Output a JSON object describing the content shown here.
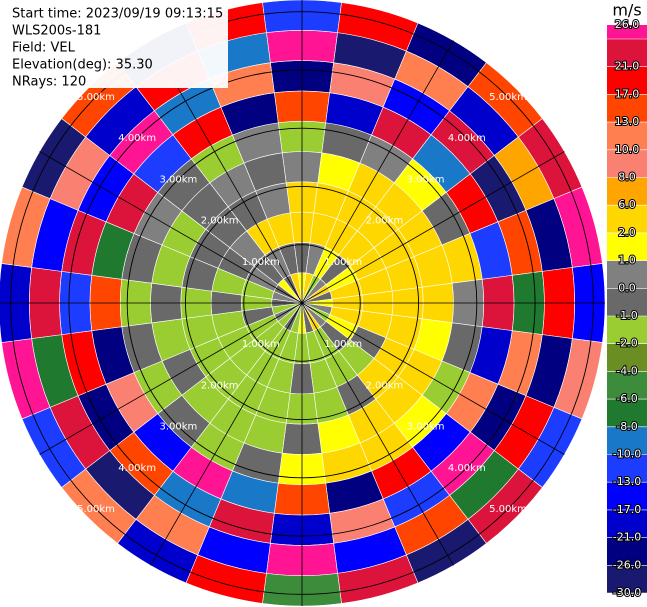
{
  "chart_data": {
    "type": "ppi",
    "header": [
      "Start time: 2023/09/19 09:13:15",
      "WLS200s-181",
      "Field: VEL",
      "Elevation(deg): 35.30",
      "NRays: 120"
    ],
    "rlim": [
      0,
      5.2
    ],
    "rticks": [
      {
        "value": 1,
        "label": "1.00km"
      },
      {
        "value": 2,
        "label": "2.00km"
      },
      {
        "value": 3,
        "label": "3.00km"
      },
      {
        "value": 4,
        "label": "4.00km"
      },
      {
        "value": 5,
        "label": "5.00km"
      }
    ],
    "azimuth_deg": [
      0,
      15,
      30,
      45,
      60,
      75,
      90,
      105,
      120,
      135,
      150,
      165,
      180,
      195,
      210,
      225,
      240,
      255,
      270,
      285,
      300,
      315,
      330,
      345
    ],
    "values": [
      [
        1.5,
        -0.5,
        3,
        3,
        0.5,
        -1.5,
        14,
        -22,
        27,
        -11
      ],
      [
        3,
        0.5,
        4,
        3,
        1.5,
        -0.5,
        -18,
        9,
        -27,
        19
      ],
      [
        -1.5,
        1.5,
        4,
        3,
        2.5,
        0.5,
        22,
        -14,
        11,
        -24
      ],
      [
        0.5,
        -0.5,
        3,
        4,
        3,
        1.5,
        -9,
        25,
        -19,
        15
      ],
      [
        3,
        1.5,
        4,
        3,
        3,
        -0.5,
        18,
        -28,
        7,
        23
      ],
      [
        -0.5,
        3,
        4,
        4,
        3,
        2.5,
        -12,
        16,
        -23,
        28
      ],
      [
        1.5,
        3,
        3,
        4,
        3,
        0.5,
        24,
        -7,
        19,
        -16
      ],
      [
        0.5,
        3,
        3,
        3,
        1.5,
        -0.5,
        -20,
        12,
        -26,
        9
      ],
      [
        -1.5,
        1.5,
        -0.5,
        3,
        3,
        -1.5,
        11,
        -25,
        20,
        -13
      ],
      [
        0.5,
        -0.5,
        -1.5,
        3,
        3,
        1.5,
        -15,
        27,
        -8,
        22
      ],
      [
        3,
        -1.5,
        -1.5,
        -0.5,
        3,
        3,
        20,
        -11,
        15,
        -29
      ],
      [
        -0.5,
        -1.5,
        -1.5,
        -1.5,
        1.5,
        3,
        -24,
        8,
        -17,
        25
      ],
      [
        1.5,
        -1.5,
        -0.5,
        -1.5,
        -0.5,
        1.5,
        13,
        -19,
        28,
        -6
      ],
      [
        -1.5,
        -1.5,
        -1.5,
        -1.5,
        -1.5,
        -0.5,
        -10,
        23,
        -14,
        18
      ],
      [
        -0.5,
        -1.5,
        -1.5,
        -1.5,
        -1.5,
        -1.5,
        26,
        -9,
        12,
        -21
      ],
      [
        -1.5,
        -1.5,
        -1.5,
        -1.5,
        -1.5,
        -0.5,
        -17,
        14,
        -28,
        10
      ],
      [
        0.5,
        -1.5,
        -1.5,
        -1.5,
        -0.5,
        -1.5,
        9,
        -26,
        21,
        -12
      ],
      [
        -1.5,
        -0.5,
        -1.5,
        -1.5,
        -1.5,
        -0.5,
        -23,
        18,
        -7,
        27
      ],
      [
        -0.5,
        -1.5,
        -0.5,
        -1.5,
        -0.5,
        -1.5,
        16,
        -12,
        24,
        -18
      ],
      [
        0.5,
        -1.5,
        -1.5,
        -0.5,
        -1.5,
        -0.5,
        -8,
        21,
        -15,
        11
      ],
      [
        -0.5,
        0.5,
        -0.5,
        -0.5,
        -1.5,
        0.5,
        25,
        -16,
        9,
        -27
      ],
      [
        1.5,
        -0.5,
        0.5,
        -0.5,
        -0.5,
        -0.5,
        -13,
        28,
        -21,
        14
      ],
      [
        -0.5,
        0.5,
        3,
        -0.5,
        0.5,
        -1.5,
        19,
        -10,
        17,
        -23
      ],
      [
        3,
        -0.5,
        3,
        0.5,
        -0.5,
        0.5,
        -26,
        12,
        -9,
        20
      ]
    ],
    "colorbar": {
      "label": "m/s",
      "clim": [
        -30,
        30
      ],
      "ticks": [
        {
          "value": -30,
          "label": "-30.0"
        },
        {
          "value": -26,
          "label": "-26.0"
        },
        {
          "value": -21,
          "label": "-21.0"
        },
        {
          "value": -17,
          "label": "-17.0"
        },
        {
          "value": -13,
          "label": "-13.0"
        },
        {
          "value": -10,
          "label": "-10.0"
        },
        {
          "value": -8,
          "label": "-8.0"
        },
        {
          "value": -6,
          "label": "-6.0"
        },
        {
          "value": -4,
          "label": "-4.0"
        },
        {
          "value": -2,
          "label": "-2.0"
        },
        {
          "value": -1,
          "label": "-1.0"
        },
        {
          "value": 0,
          "label": "0.0"
        },
        {
          "value": 1,
          "label": "1.0"
        },
        {
          "value": 2,
          "label": "2.0"
        },
        {
          "value": 6,
          "label": "6.0"
        },
        {
          "value": 8,
          "label": "8.0"
        },
        {
          "value": 10,
          "label": "10.0"
        },
        {
          "value": 13,
          "label": "13.0"
        },
        {
          "value": 17,
          "label": "17.0"
        },
        {
          "value": 21,
          "label": "21.0"
        },
        {
          "value": 26,
          "label": "26.0"
        }
      ],
      "colors": [
        "#191970",
        "#000080",
        "#0000cd",
        "#0000ff",
        "#1c3cff",
        "#1a78c8",
        "#1f7a30",
        "#3c8c3c",
        "#6b8e23",
        "#9acd32",
        "#696969",
        "#808080",
        "#ffff00",
        "#ffd700",
        "#ffa500",
        "#fa8072",
        "#ff7f50",
        "#ff4500",
        "#ff0000",
        "#dc143c",
        "#ff1493"
      ]
    }
  }
}
